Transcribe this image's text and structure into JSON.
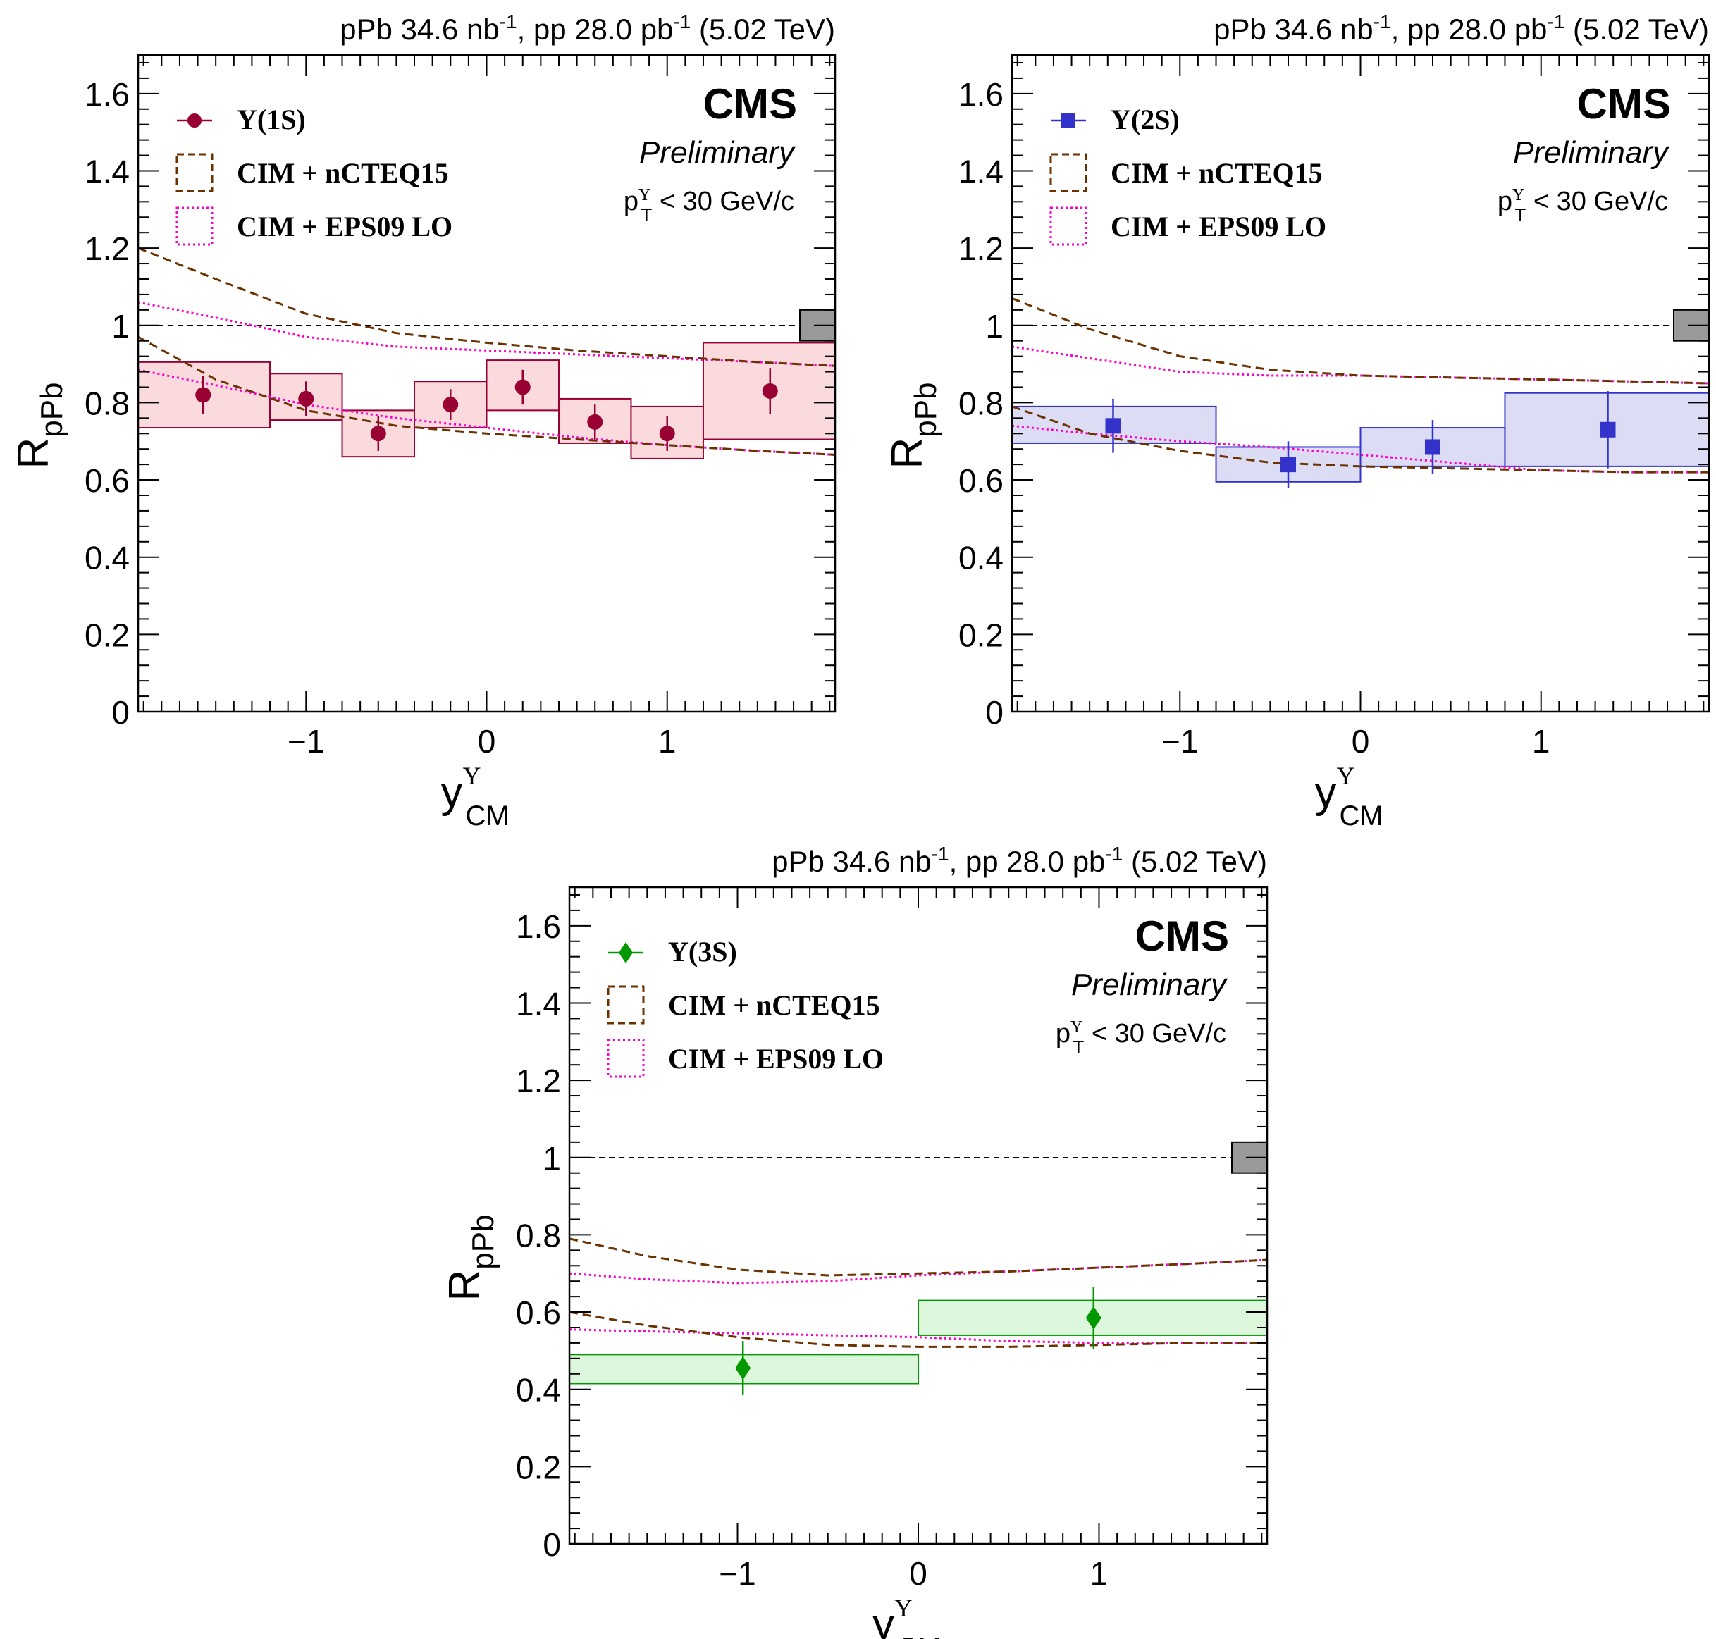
{
  "common": {
    "lumi_parts": [
      "pPb 34.6 nb",
      "-1",
      ", pp 28.0 pb",
      "-1",
      " (5.02 TeV)"
    ],
    "cms_label": "CMS",
    "preliminary_label": "Preliminary",
    "pt_cut_parts": [
      "p",
      "Υ",
      "T",
      " < 30 GeV/c"
    ],
    "y_axis_label_parts": [
      "R",
      "pPb"
    ],
    "x_axis_label_parts": [
      "y",
      "Υ",
      "CM"
    ],
    "legend_model1": "CIM + nCTEQ15",
    "legend_model2": "CIM + EPS09 LO",
    "y_tick_labels": [
      "0",
      "0.2",
      "0.4",
      "0.6",
      "0.8",
      "1",
      "1.2",
      "1.4",
      "1.6"
    ],
    "x_tick_labels": [
      "−1",
      "0",
      "1"
    ],
    "colors": {
      "ncteq15": "#6b3200",
      "eps09": "#ff00cc",
      "reference_line": "#000000",
      "global_uncertainty_box": "#999999"
    }
  },
  "chart_data": [
    {
      "type": "scatter",
      "panel": "upsilon-1s",
      "legend_data_label": "Υ(1S)",
      "marker": "circle",
      "color": "#990033",
      "box_fill": "#fadadd",
      "xlim": [
        -1.93,
        1.93
      ],
      "ylim": [
        0,
        1.7
      ],
      "y_ticks": [
        0,
        0.2,
        0.4,
        0.6,
        0.8,
        1.0,
        1.2,
        1.4,
        1.6
      ],
      "x_ticks": [
        -1,
        0,
        1
      ],
      "points": [
        {
          "x": -1.57,
          "y": 0.82,
          "stat": 0.05,
          "syst_low": 0.735,
          "syst_high": 0.905,
          "bin": [
            -1.93,
            -1.2
          ]
        },
        {
          "x": -1.0,
          "y": 0.81,
          "stat": 0.045,
          "syst_low": 0.755,
          "syst_high": 0.875,
          "bin": [
            -1.2,
            -0.8
          ]
        },
        {
          "x": -0.6,
          "y": 0.72,
          "stat": 0.045,
          "syst_low": 0.66,
          "syst_high": 0.78,
          "bin": [
            -0.8,
            -0.4
          ]
        },
        {
          "x": -0.2,
          "y": 0.795,
          "stat": 0.04,
          "syst_low": 0.735,
          "syst_high": 0.855,
          "bin": [
            -0.4,
            0.0
          ]
        },
        {
          "x": 0.2,
          "y": 0.84,
          "stat": 0.045,
          "syst_low": 0.78,
          "syst_high": 0.91,
          "bin": [
            0.0,
            0.4
          ]
        },
        {
          "x": 0.6,
          "y": 0.75,
          "stat": 0.045,
          "syst_low": 0.695,
          "syst_high": 0.81,
          "bin": [
            0.4,
            0.8
          ]
        },
        {
          "x": 1.0,
          "y": 0.72,
          "stat": 0.045,
          "syst_low": 0.655,
          "syst_high": 0.79,
          "bin": [
            0.8,
            1.2
          ]
        },
        {
          "x": 1.57,
          "y": 0.83,
          "stat": 0.06,
          "syst_low": 0.705,
          "syst_high": 0.955,
          "bin": [
            1.2,
            1.93
          ]
        }
      ],
      "global_uncertainty": [
        0.96,
        1.04
      ],
      "ncteq15_upper": [
        [
          -1.93,
          1.2
        ],
        [
          -1.5,
          1.12
        ],
        [
          -1.0,
          1.03
        ],
        [
          -0.5,
          0.98
        ],
        [
          0.0,
          0.955
        ],
        [
          0.5,
          0.935
        ],
        [
          1.0,
          0.92
        ],
        [
          1.5,
          0.905
        ],
        [
          1.93,
          0.895
        ]
      ],
      "ncteq15_lower": [
        [
          -1.93,
          0.97
        ],
        [
          -1.5,
          0.86
        ],
        [
          -1.0,
          0.78
        ],
        [
          -0.5,
          0.74
        ],
        [
          0.0,
          0.72
        ],
        [
          0.5,
          0.705
        ],
        [
          1.0,
          0.69
        ],
        [
          1.5,
          0.675
        ],
        [
          1.93,
          0.665
        ]
      ],
      "eps09_upper": [
        [
          -1.93,
          1.06
        ],
        [
          -1.5,
          1.02
        ],
        [
          -1.0,
          0.97
        ],
        [
          -0.5,
          0.945
        ],
        [
          0.0,
          0.935
        ],
        [
          0.5,
          0.925
        ],
        [
          1.0,
          0.915
        ],
        [
          1.5,
          0.905
        ],
        [
          1.93,
          0.895
        ]
      ],
      "eps09_lower": [
        [
          -1.93,
          0.885
        ],
        [
          -1.5,
          0.845
        ],
        [
          -1.0,
          0.795
        ],
        [
          -0.5,
          0.76
        ],
        [
          0.0,
          0.735
        ],
        [
          0.5,
          0.71
        ],
        [
          1.0,
          0.69
        ],
        [
          1.5,
          0.675
        ],
        [
          1.93,
          0.665
        ]
      ]
    },
    {
      "type": "scatter",
      "panel": "upsilon-2s",
      "legend_data_label": "Υ(2S)",
      "marker": "square",
      "color": "#3333cc",
      "box_fill": "#dcdcf5",
      "xlim": [
        -1.93,
        1.93
      ],
      "ylim": [
        0,
        1.7
      ],
      "y_ticks": [
        0,
        0.2,
        0.4,
        0.6,
        0.8,
        1.0,
        1.2,
        1.4,
        1.6
      ],
      "x_ticks": [
        -1,
        0,
        1
      ],
      "points": [
        {
          "x": -1.37,
          "y": 0.74,
          "stat": 0.07,
          "syst_low": 0.695,
          "syst_high": 0.79,
          "bin": [
            -1.93,
            -0.8
          ]
        },
        {
          "x": -0.4,
          "y": 0.64,
          "stat": 0.06,
          "syst_low": 0.595,
          "syst_high": 0.685,
          "bin": [
            -0.8,
            0.0
          ]
        },
        {
          "x": 0.4,
          "y": 0.685,
          "stat": 0.07,
          "syst_low": 0.635,
          "syst_high": 0.735,
          "bin": [
            0.0,
            0.8
          ]
        },
        {
          "x": 1.37,
          "y": 0.73,
          "stat": 0.1,
          "syst_low": 0.635,
          "syst_high": 0.825,
          "bin": [
            0.8,
            1.93
          ]
        }
      ],
      "global_uncertainty": [
        0.96,
        1.04
      ],
      "ncteq15_upper": [
        [
          -1.93,
          1.07
        ],
        [
          -1.5,
          0.99
        ],
        [
          -1.0,
          0.92
        ],
        [
          -0.5,
          0.885
        ],
        [
          0.0,
          0.87
        ],
        [
          0.5,
          0.865
        ],
        [
          1.0,
          0.86
        ],
        [
          1.5,
          0.855
        ],
        [
          1.93,
          0.85
        ]
      ],
      "ncteq15_lower": [
        [
          -1.93,
          0.79
        ],
        [
          -1.5,
          0.72
        ],
        [
          -1.0,
          0.675
        ],
        [
          -0.5,
          0.645
        ],
        [
          0.0,
          0.635
        ],
        [
          0.5,
          0.63
        ],
        [
          1.0,
          0.625
        ],
        [
          1.5,
          0.62
        ],
        [
          1.93,
          0.62
        ]
      ],
      "eps09_upper": [
        [
          -1.93,
          0.945
        ],
        [
          -1.5,
          0.915
        ],
        [
          -1.0,
          0.88
        ],
        [
          -0.5,
          0.87
        ],
        [
          0.0,
          0.87
        ],
        [
          0.5,
          0.865
        ],
        [
          1.0,
          0.86
        ],
        [
          1.5,
          0.855
        ],
        [
          1.93,
          0.85
        ]
      ],
      "eps09_lower": [
        [
          -1.93,
          0.74
        ],
        [
          -1.5,
          0.72
        ],
        [
          -1.0,
          0.7
        ],
        [
          -0.5,
          0.685
        ],
        [
          0.0,
          0.665
        ],
        [
          0.5,
          0.645
        ],
        [
          1.0,
          0.625
        ],
        [
          1.5,
          0.62
        ],
        [
          1.93,
          0.62
        ]
      ]
    },
    {
      "type": "scatter",
      "panel": "upsilon-3s",
      "legend_data_label": "Υ(3S)",
      "marker": "diamond",
      "color": "#009900",
      "box_fill": "#dcf7dc",
      "xlim": [
        -1.93,
        1.93
      ],
      "ylim": [
        0,
        1.7
      ],
      "y_ticks": [
        0,
        0.2,
        0.4,
        0.6,
        0.8,
        1.0,
        1.2,
        1.4,
        1.6
      ],
      "x_ticks": [
        -1,
        0,
        1
      ],
      "points": [
        {
          "x": -0.97,
          "y": 0.455,
          "stat": 0.07,
          "syst_low": 0.415,
          "syst_high": 0.49,
          "bin": [
            -1.93,
            0.0
          ]
        },
        {
          "x": 0.97,
          "y": 0.585,
          "stat": 0.08,
          "syst_low": 0.54,
          "syst_high": 0.63,
          "bin": [
            0.0,
            1.93
          ]
        }
      ],
      "global_uncertainty": [
        0.96,
        1.04
      ],
      "ncteq15_upper": [
        [
          -1.93,
          0.79
        ],
        [
          -1.5,
          0.745
        ],
        [
          -1.0,
          0.71
        ],
        [
          -0.5,
          0.695
        ],
        [
          0.0,
          0.7
        ],
        [
          0.5,
          0.705
        ],
        [
          1.0,
          0.715
        ],
        [
          1.5,
          0.725
        ],
        [
          1.93,
          0.735
        ]
      ],
      "ncteq15_lower": [
        [
          -1.93,
          0.6
        ],
        [
          -1.5,
          0.565
        ],
        [
          -1.0,
          0.535
        ],
        [
          -0.5,
          0.515
        ],
        [
          0.0,
          0.51
        ],
        [
          0.5,
          0.51
        ],
        [
          1.0,
          0.515
        ],
        [
          1.5,
          0.52
        ],
        [
          1.93,
          0.52
        ]
      ],
      "eps09_upper": [
        [
          -1.93,
          0.7
        ],
        [
          -1.5,
          0.685
        ],
        [
          -1.0,
          0.675
        ],
        [
          -0.5,
          0.68
        ],
        [
          0.0,
          0.695
        ],
        [
          0.5,
          0.705
        ],
        [
          1.0,
          0.715
        ],
        [
          1.5,
          0.725
        ],
        [
          1.93,
          0.735
        ]
      ],
      "eps09_lower": [
        [
          -1.93,
          0.555
        ],
        [
          -1.5,
          0.55
        ],
        [
          -1.0,
          0.545
        ],
        [
          -0.5,
          0.54
        ],
        [
          0.0,
          0.535
        ],
        [
          0.5,
          0.525
        ],
        [
          1.0,
          0.52
        ],
        [
          1.5,
          0.52
        ],
        [
          1.93,
          0.52
        ]
      ]
    }
  ]
}
